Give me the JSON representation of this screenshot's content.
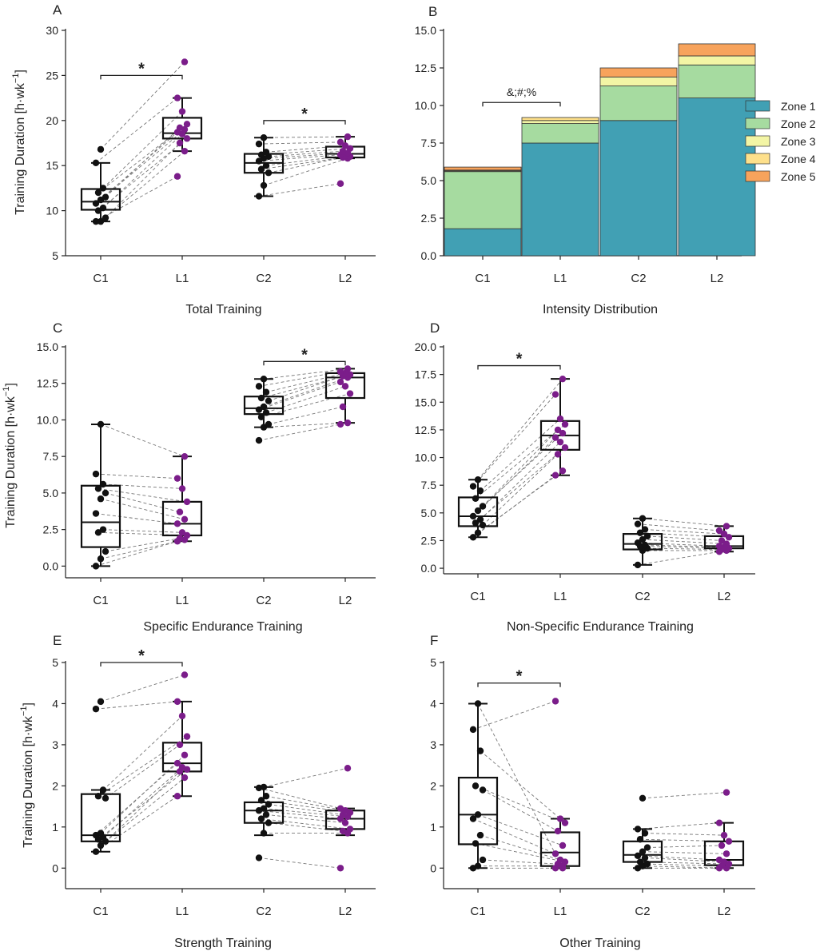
{
  "figure": {
    "ylabel_main": "Training Duration [h·wk",
    "ylabel_sup": "−1",
    "ylabel_close": "]"
  },
  "chart_data": [
    {
      "panel": "A",
      "type": "box",
      "title": "Total Training",
      "ylabel": "Training Duration [h·wk−1]",
      "categories": [
        "C1",
        "L1",
        "C2",
        "L2"
      ],
      "yticks": [
        5,
        10,
        15,
        20,
        25,
        30
      ],
      "ytick_labels": [
        "5",
        "10",
        "15",
        "20",
        "25",
        "30"
      ],
      "ylim": [
        5,
        30
      ],
      "boxes": [
        {
          "min": 8.8,
          "q1": 10.1,
          "median": 11.0,
          "q3": 12.4,
          "max": 15.3
        },
        {
          "min": 16.6,
          "q1": 18.0,
          "median": 18.6,
          "q3": 20.3,
          "max": 22.5
        },
        {
          "min": 11.6,
          "q1": 14.2,
          "median": 15.3,
          "q3": 16.3,
          "max": 18.1
        },
        {
          "min": 15.8,
          "q1": 15.9,
          "median": 16.3,
          "q3": 17.1,
          "max": 18.2
        }
      ],
      "points": [
        [
          8.8,
          8.8,
          9.2,
          10.0,
          10.3,
          10.8,
          11.2,
          11.5,
          12.0,
          12.5,
          15.3,
          16.8
        ],
        [
          13.8,
          16.6,
          17.5,
          18.0,
          18.5,
          18.7,
          19.0,
          19.2,
          19.6,
          21.0,
          22.5,
          26.5
        ],
        [
          11.6,
          12.8,
          14.2,
          14.6,
          15.0,
          15.5,
          15.8,
          16.0,
          16.2,
          16.5,
          17.4,
          18.1
        ],
        [
          13.0,
          15.8,
          15.9,
          16.0,
          16.1,
          16.2,
          16.4,
          16.6,
          16.9,
          17.2,
          17.6,
          18.2
        ]
      ],
      "brackets": [
        {
          "from": "C1",
          "to": "L1",
          "label": "*",
          "y": 25
        },
        {
          "from": "C2",
          "to": "L2",
          "label": "*",
          "y": 20
        }
      ]
    },
    {
      "panel": "B",
      "type": "stacked-bar",
      "title": "Intensity Distribution",
      "categories": [
        "C1",
        "L1",
        "C2",
        "L2"
      ],
      "yticks": [
        0,
        2.5,
        5,
        7.5,
        10,
        12.5,
        15
      ],
      "ytick_labels": [
        "0.0",
        "2.5",
        "5.0",
        "7.5",
        "10.0",
        "12.5",
        "15.0"
      ],
      "ylim": [
        0,
        15
      ],
      "series": [
        {
          "name": "Zone 1",
          "color": "#41a0b4",
          "values": [
            1.8,
            7.5,
            9.0,
            10.5
          ]
        },
        {
          "name": "Zone 2",
          "color": "#a6dba0",
          "values": [
            3.8,
            1.3,
            2.3,
            2.2
          ]
        },
        {
          "name": "Zone 3",
          "color": "#f3f5a5",
          "values": [
            0.05,
            0.2,
            0.6,
            0.6
          ]
        },
        {
          "name": "Zone 4",
          "color": "#fee08b",
          "values": [
            0.05,
            0.2,
            0.0,
            0.0
          ]
        },
        {
          "name": "Zone 5",
          "color": "#f7a35c",
          "values": [
            0.2,
            0.0,
            0.6,
            0.8
          ]
        }
      ],
      "brackets": [
        {
          "from": "C1",
          "to": "L1",
          "label": "&;#;%",
          "y": 10.2
        }
      ],
      "legend": "right"
    },
    {
      "panel": "C",
      "type": "box",
      "title": "Specific Endurance Training",
      "ylabel": "Training Duration [h·wk−1]",
      "categories": [
        "C1",
        "L1",
        "C2",
        "L2"
      ],
      "yticks": [
        0,
        2.5,
        5,
        7.5,
        10,
        12.5,
        15
      ],
      "ytick_labels": [
        "0.0",
        "2.5",
        "5.0",
        "7.5",
        "10.0",
        "12.5",
        "15.0"
      ],
      "ylim": [
        -0.8,
        15
      ],
      "boxes": [
        {
          "min": 0.0,
          "q1": 1.3,
          "median": 3.0,
          "q3": 5.5,
          "max": 9.7
        },
        {
          "min": 1.7,
          "q1": 2.1,
          "median": 2.9,
          "q3": 4.4,
          "max": 7.5
        },
        {
          "min": 9.5,
          "q1": 10.4,
          "median": 10.8,
          "q3": 11.6,
          "max": 12.8
        },
        {
          "min": 9.8,
          "q1": 11.5,
          "median": 12.9,
          "q3": 13.2,
          "max": 13.5
        }
      ],
      "points": [
        [
          0.0,
          0.5,
          1.0,
          2.3,
          2.5,
          3.6,
          4.6,
          5.0,
          5.3,
          5.6,
          6.3,
          9.7
        ],
        [
          1.7,
          1.8,
          1.9,
          2.1,
          2.3,
          2.9,
          3.2,
          3.7,
          4.4,
          5.3,
          6.0,
          7.5
        ],
        [
          8.6,
          9.5,
          9.7,
          10.2,
          10.5,
          10.7,
          10.9,
          11.3,
          11.5,
          11.9,
          12.3,
          12.8
        ],
        [
          9.7,
          9.8,
          10.9,
          11.8,
          12.3,
          12.6,
          12.9,
          13.0,
          13.1,
          13.2,
          13.3,
          13.5
        ]
      ],
      "brackets": [
        {
          "from": "C2",
          "to": "L2",
          "label": "*",
          "y": 14.0
        }
      ]
    },
    {
      "panel": "D",
      "type": "box",
      "title": "Non-Specific Endurance Training",
      "categories": [
        "C1",
        "L1",
        "C2",
        "L2"
      ],
      "yticks": [
        0,
        2.5,
        5,
        7.5,
        10,
        12.5,
        15,
        17.5,
        20
      ],
      "ytick_labels": [
        "0.0",
        "2.5",
        "5.0",
        "7.5",
        "10.0",
        "12.5",
        "15.0",
        "17.5",
        "20.0"
      ],
      "ylim": [
        -0.5,
        20
      ],
      "boxes": [
        {
          "min": 2.8,
          "q1": 3.8,
          "median": 4.7,
          "q3": 6.4,
          "max": 8.0
        },
        {
          "min": 8.4,
          "q1": 10.7,
          "median": 12.0,
          "q3": 13.3,
          "max": 17.1
        },
        {
          "min": 0.3,
          "q1": 1.7,
          "median": 2.2,
          "q3": 3.1,
          "max": 4.5
        },
        {
          "min": 1.5,
          "q1": 1.8,
          "median": 2.0,
          "q3": 2.9,
          "max": 3.8
        }
      ],
      "points": [
        [
          2.8,
          3.2,
          3.9,
          4.1,
          4.4,
          4.7,
          5.2,
          5.6,
          6.3,
          7.0,
          7.4,
          8.0
        ],
        [
          8.4,
          8.8,
          10.3,
          10.9,
          11.4,
          11.8,
          12.2,
          12.5,
          13.0,
          13.5,
          15.7,
          17.1
        ],
        [
          0.3,
          1.6,
          1.8,
          2.0,
          2.1,
          2.3,
          2.6,
          2.9,
          3.2,
          3.5,
          4.0,
          4.5
        ],
        [
          1.5,
          1.6,
          1.7,
          1.8,
          1.9,
          2.0,
          2.2,
          2.5,
          2.8,
          3.1,
          3.4,
          3.8
        ]
      ],
      "brackets": [
        {
          "from": "C1",
          "to": "L1",
          "label": "*",
          "y": 18.3
        }
      ]
    },
    {
      "panel": "E",
      "type": "box",
      "title": "Strength Training",
      "ylabel": "Training Duration [h·wk−1]",
      "categories": [
        "C1",
        "L1",
        "C2",
        "L2"
      ],
      "yticks": [
        0,
        1,
        2,
        3,
        4,
        5
      ],
      "ytick_labels": [
        "0",
        "1",
        "2",
        "3",
        "4",
        "5"
      ],
      "ylim": [
        -0.5,
        5
      ],
      "boxes": [
        {
          "min": 0.4,
          "q1": 0.65,
          "median": 0.8,
          "q3": 1.8,
          "max": 1.9
        },
        {
          "min": 1.75,
          "q1": 2.35,
          "median": 2.55,
          "q3": 3.05,
          "max": 4.05
        },
        {
          "min": 0.8,
          "q1": 1.1,
          "median": 1.4,
          "q3": 1.6,
          "max": 1.97
        },
        {
          "min": 0.8,
          "q1": 0.95,
          "median": 1.2,
          "q3": 1.4,
          "max": 1.45
        }
      ],
      "points": [
        [
          0.4,
          0.55,
          0.65,
          0.7,
          0.75,
          0.8,
          0.85,
          1.7,
          1.75,
          1.9,
          3.87,
          4.05
        ],
        [
          1.75,
          2.2,
          2.35,
          2.4,
          2.45,
          2.55,
          2.75,
          3.0,
          3.2,
          3.7,
          4.05,
          4.7
        ],
        [
          0.25,
          0.85,
          1.1,
          1.2,
          1.3,
          1.4,
          1.45,
          1.55,
          1.65,
          1.75,
          1.95,
          1.97
        ],
        [
          0.0,
          0.85,
          0.9,
          0.95,
          1.1,
          1.2,
          1.25,
          1.3,
          1.35,
          1.4,
          1.45,
          2.43
        ]
      ],
      "brackets": [
        {
          "from": "C1",
          "to": "L1",
          "label": "*",
          "y": 5.0
        }
      ]
    },
    {
      "panel": "F",
      "type": "box",
      "title": "Other Training",
      "categories": [
        "C1",
        "L1",
        "C2",
        "L2"
      ],
      "yticks": [
        0,
        1,
        2,
        3,
        4,
        5
      ],
      "ytick_labels": [
        "0",
        "1",
        "2",
        "3",
        "4",
        "5"
      ],
      "ylim": [
        -0.5,
        5
      ],
      "boxes": [
        {
          "min": 0.0,
          "q1": 0.58,
          "median": 1.3,
          "q3": 2.2,
          "max": 4.0
        },
        {
          "min": 0.0,
          "q1": 0.05,
          "median": 0.38,
          "q3": 0.87,
          "max": 1.2
        },
        {
          "min": 0.0,
          "q1": 0.15,
          "median": 0.32,
          "q3": 0.65,
          "max": 0.95
        },
        {
          "min": 0.0,
          "q1": 0.07,
          "median": 0.2,
          "q3": 0.65,
          "max": 1.1
        }
      ],
      "points": [
        [
          0.0,
          0.05,
          0.2,
          0.6,
          0.8,
          1.2,
          1.3,
          1.9,
          2.0,
          2.85,
          3.37,
          4.0
        ],
        [
          0.0,
          0.05,
          0.1,
          0.15,
          0.2,
          0.35,
          0.55,
          0.9,
          1.1,
          1.2,
          4.06,
          0.0
        ],
        [
          0.0,
          0.05,
          0.1,
          0.15,
          0.25,
          0.3,
          0.4,
          0.5,
          0.7,
          0.85,
          0.95,
          1.7
        ],
        [
          0.0,
          0.0,
          0.05,
          0.1,
          0.15,
          0.2,
          0.35,
          0.55,
          0.65,
          0.8,
          1.1,
          1.84
        ]
      ],
      "brackets": [
        {
          "from": "C1",
          "to": "L1",
          "label": "*",
          "y": 4.5
        }
      ]
    }
  ]
}
